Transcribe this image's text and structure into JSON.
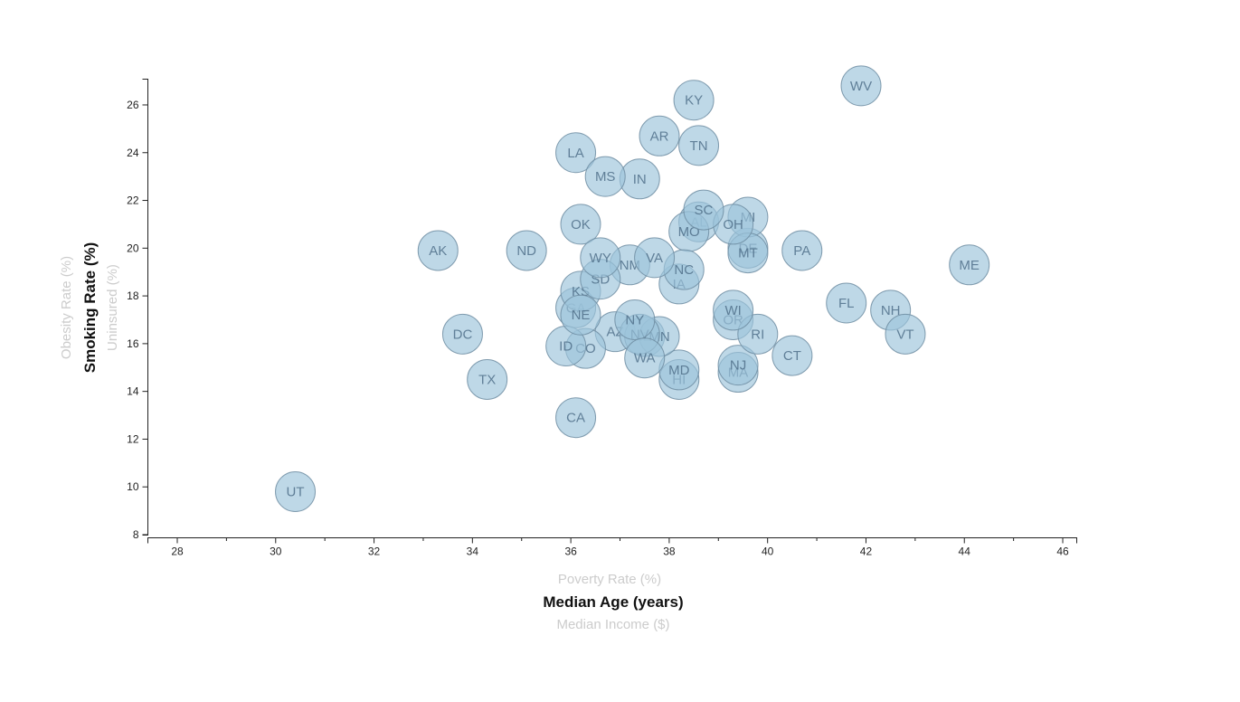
{
  "chart_data": {
    "type": "scatter",
    "title": "",
    "x_axis": {
      "active_label": "Median Age (years)",
      "options": [
        "Poverty Rate (%)",
        "Median Age (years)",
        "Median Income ($)"
      ],
      "ticks": [
        28,
        30,
        32,
        34,
        36,
        38,
        40,
        42,
        44,
        46
      ],
      "minor_ticks": [
        29,
        31,
        33,
        35,
        37,
        39,
        41,
        43,
        45
      ],
      "range": [
        27.4,
        46.3
      ],
      "grid": false
    },
    "y_axis": {
      "active_label": "Smoking Rate (%)",
      "options": [
        "Obesity Rate (%)",
        "Smoking Rate (%)",
        "Uninsured (%)"
      ],
      "ticks": [
        8,
        10,
        12,
        14,
        16,
        18,
        20,
        22,
        24,
        26
      ],
      "range": [
        7.8,
        27.1
      ],
      "grid": false
    },
    "legend": null,
    "points": [
      {
        "state": "AL",
        "x": 38.6,
        "y": 21.1
      },
      {
        "state": "AK",
        "x": 33.3,
        "y": 19.9
      },
      {
        "state": "AZ",
        "x": 36.9,
        "y": 16.5
      },
      {
        "state": "AR",
        "x": 37.8,
        "y": 24.7
      },
      {
        "state": "CA",
        "x": 36.1,
        "y": 12.9
      },
      {
        "state": "CO",
        "x": 36.3,
        "y": 15.8
      },
      {
        "state": "CT",
        "x": 40.5,
        "y": 15.5
      },
      {
        "state": "DE",
        "x": 39.6,
        "y": 20.0
      },
      {
        "state": "DC",
        "x": 33.8,
        "y": 16.4
      },
      {
        "state": "FL",
        "x": 41.6,
        "y": 17.7
      },
      {
        "state": "GA",
        "x": 36.1,
        "y": 17.5
      },
      {
        "state": "HI",
        "x": 38.2,
        "y": 14.5
      },
      {
        "state": "ID",
        "x": 35.9,
        "y": 15.9
      },
      {
        "state": "IL",
        "x": 37.5,
        "y": 16.3
      },
      {
        "state": "IN",
        "x": 37.4,
        "y": 22.9
      },
      {
        "state": "IA",
        "x": 38.2,
        "y": 18.5
      },
      {
        "state": "KS",
        "x": 36.2,
        "y": 18.2
      },
      {
        "state": "KY",
        "x": 38.5,
        "y": 26.2
      },
      {
        "state": "LA",
        "x": 36.1,
        "y": 24.0
      },
      {
        "state": "ME",
        "x": 44.1,
        "y": 19.3
      },
      {
        "state": "MD",
        "x": 38.2,
        "y": 14.9
      },
      {
        "state": "MA",
        "x": 39.4,
        "y": 14.8
      },
      {
        "state": "MI",
        "x": 39.6,
        "y": 21.3
      },
      {
        "state": "MN",
        "x": 37.8,
        "y": 16.3
      },
      {
        "state": "MS",
        "x": 36.7,
        "y": 23.0
      },
      {
        "state": "MO",
        "x": 38.4,
        "y": 20.7
      },
      {
        "state": "MT",
        "x": 39.6,
        "y": 19.8
      },
      {
        "state": "NE",
        "x": 36.2,
        "y": 17.2
      },
      {
        "state": "NV",
        "x": 37.4,
        "y": 16.4
      },
      {
        "state": "NH",
        "x": 42.5,
        "y": 17.4
      },
      {
        "state": "NJ",
        "x": 39.4,
        "y": 15.1
      },
      {
        "state": "NM",
        "x": 37.2,
        "y": 19.3
      },
      {
        "state": "NY",
        "x": 37.3,
        "y": 17.0
      },
      {
        "state": "NC",
        "x": 38.3,
        "y": 19.1
      },
      {
        "state": "ND",
        "x": 35.1,
        "y": 19.9
      },
      {
        "state": "OH",
        "x": 39.3,
        "y": 21.0
      },
      {
        "state": "OK",
        "x": 36.2,
        "y": 21.0
      },
      {
        "state": "OR",
        "x": 39.3,
        "y": 17.0
      },
      {
        "state": "PA",
        "x": 40.7,
        "y": 19.9
      },
      {
        "state": "RI",
        "x": 39.8,
        "y": 16.4
      },
      {
        "state": "SC",
        "x": 38.7,
        "y": 21.6
      },
      {
        "state": "SD",
        "x": 36.6,
        "y": 18.7
      },
      {
        "state": "TN",
        "x": 38.6,
        "y": 24.3
      },
      {
        "state": "TX",
        "x": 34.3,
        "y": 14.5
      },
      {
        "state": "UT",
        "x": 30.4,
        "y": 9.8
      },
      {
        "state": "VT",
        "x": 42.8,
        "y": 16.4
      },
      {
        "state": "VA",
        "x": 37.7,
        "y": 19.6
      },
      {
        "state": "WA",
        "x": 37.5,
        "y": 15.4
      },
      {
        "state": "WV",
        "x": 41.9,
        "y": 26.8
      },
      {
        "state": "WI",
        "x": 39.3,
        "y": 17.4
      },
      {
        "state": "WY",
        "x": 36.6,
        "y": 19.6
      }
    ]
  },
  "x_selector": {
    "option_top": "Poverty Rate (%)",
    "option_active": "Median Age (years)",
    "option_bottom": "Median Income ($)"
  },
  "y_selector": {
    "option_left": "Obesity Rate (%)",
    "option_active": "Smoking Rate (%)",
    "option_right": "Uninsured (%)"
  },
  "colors": {
    "bubble_fill": "#9cc4da",
    "bubble_stroke": "#6f8da2",
    "bubble_label": "#50708a",
    "axis": "#222222",
    "active_axis_title": "#111111",
    "inactive_axis_title": "#cccccc",
    "background": "#ffffff"
  }
}
